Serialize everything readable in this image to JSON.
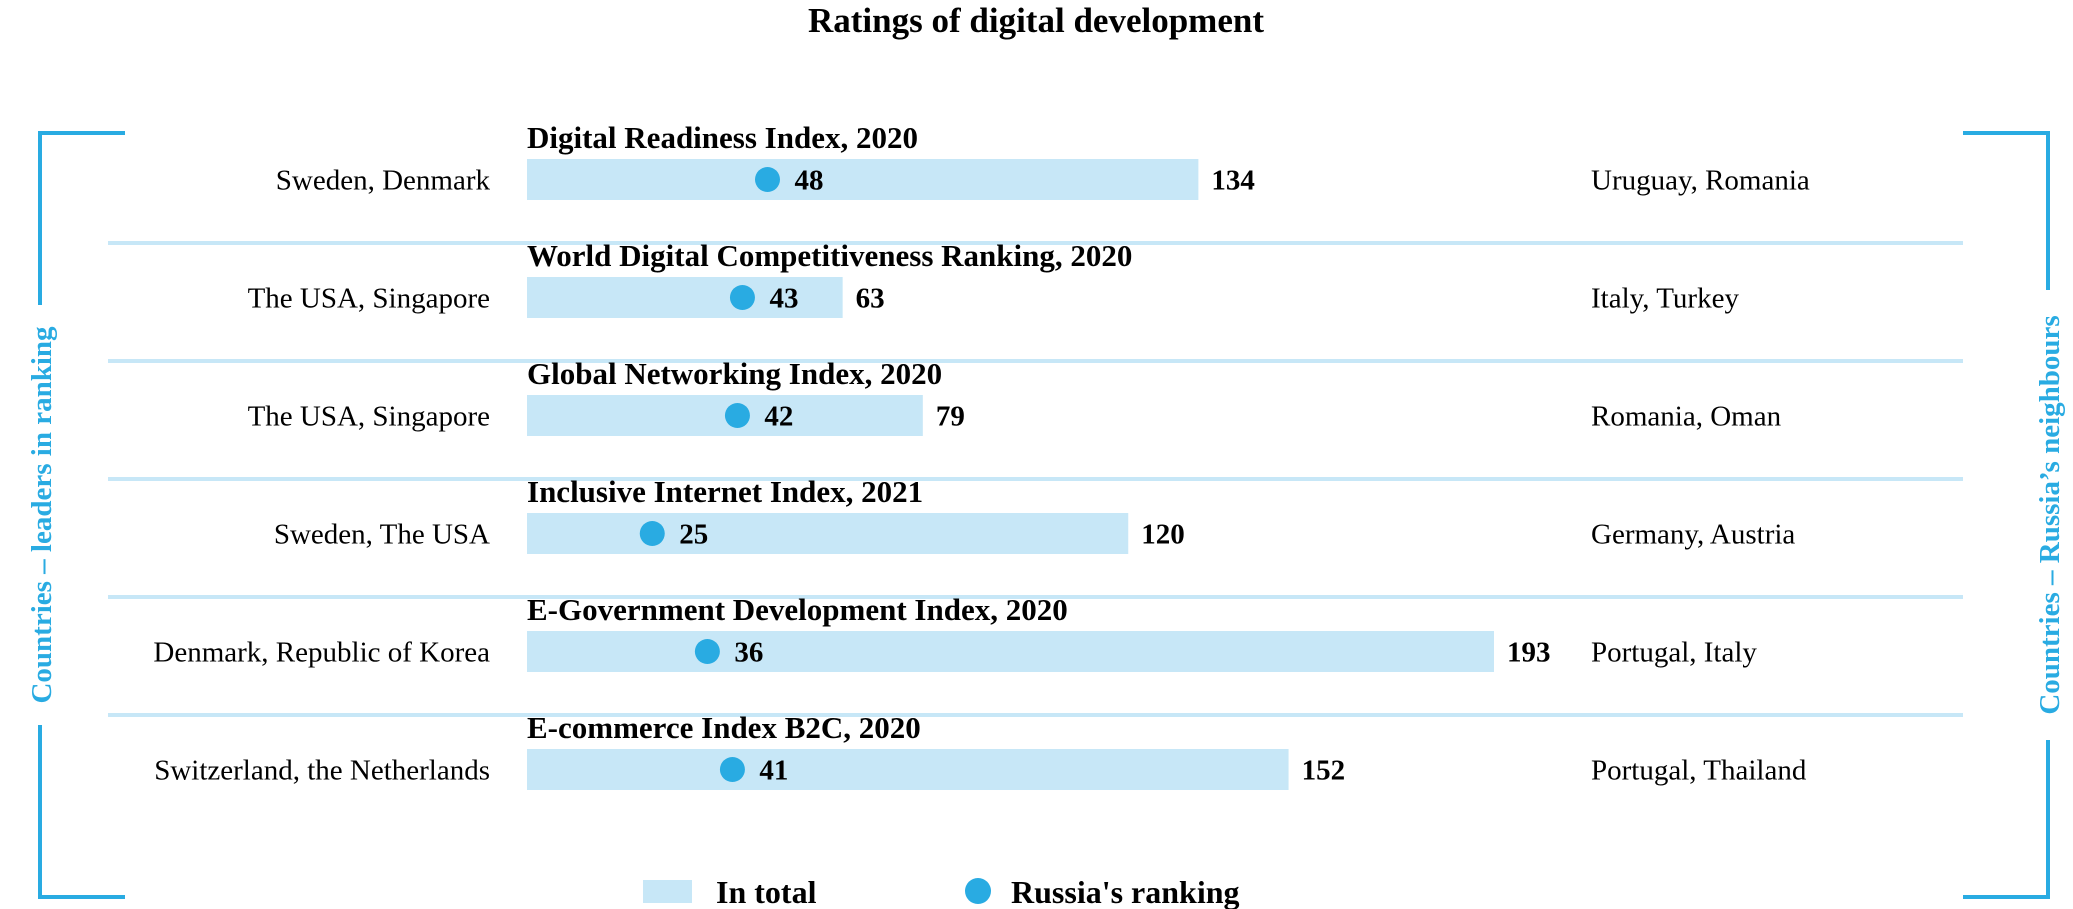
{
  "chart_data": {
    "type": "bar",
    "title": "Ratings of digital development",
    "left_group_label": "Countries – leaders in ranking",
    "right_group_label": "Countries – Russia’s neighbours",
    "legend": {
      "total_label": "In total",
      "russia_label": "Russia's ranking",
      "placement": "bottom-center"
    },
    "colors": {
      "bar": "#c7e7f7",
      "dot": "#29abe2",
      "bracket": "#29abe2",
      "separator": "#c7e7f7"
    },
    "xlim": [
      0,
      193
    ],
    "indices": [
      {
        "name": "Digital Readiness Index, 2020",
        "total": 134,
        "russia": 48,
        "leaders": "Sweden, Denmark",
        "neighbours": "Uruguay, Romania"
      },
      {
        "name": "World Digital Competitiveness Ranking, 2020",
        "total": 63,
        "russia": 43,
        "leaders": "The USA, Singapore",
        "neighbours": "Italy, Turkey"
      },
      {
        "name": "Global Networking Index, 2020",
        "total": 79,
        "russia": 42,
        "leaders": "The USA, Singapore",
        "neighbours": "Romania, Oman"
      },
      {
        "name": "Inclusive Internet Index, 2021",
        "total": 120,
        "russia": 25,
        "leaders": "Sweden, The USA",
        "neighbours": "Germany, Austria"
      },
      {
        "name": "E-Government Development Index, 2020",
        "total": 193,
        "russia": 36,
        "leaders": "Denmark, Republic of Korea",
        "neighbours": "Portugal, Italy"
      },
      {
        "name": "E-commerce Index B2C, 2020",
        "total": 152,
        "russia": 41,
        "leaders": "Switzerland, the Netherlands",
        "neighbours": "Portugal, Thailand"
      }
    ]
  }
}
